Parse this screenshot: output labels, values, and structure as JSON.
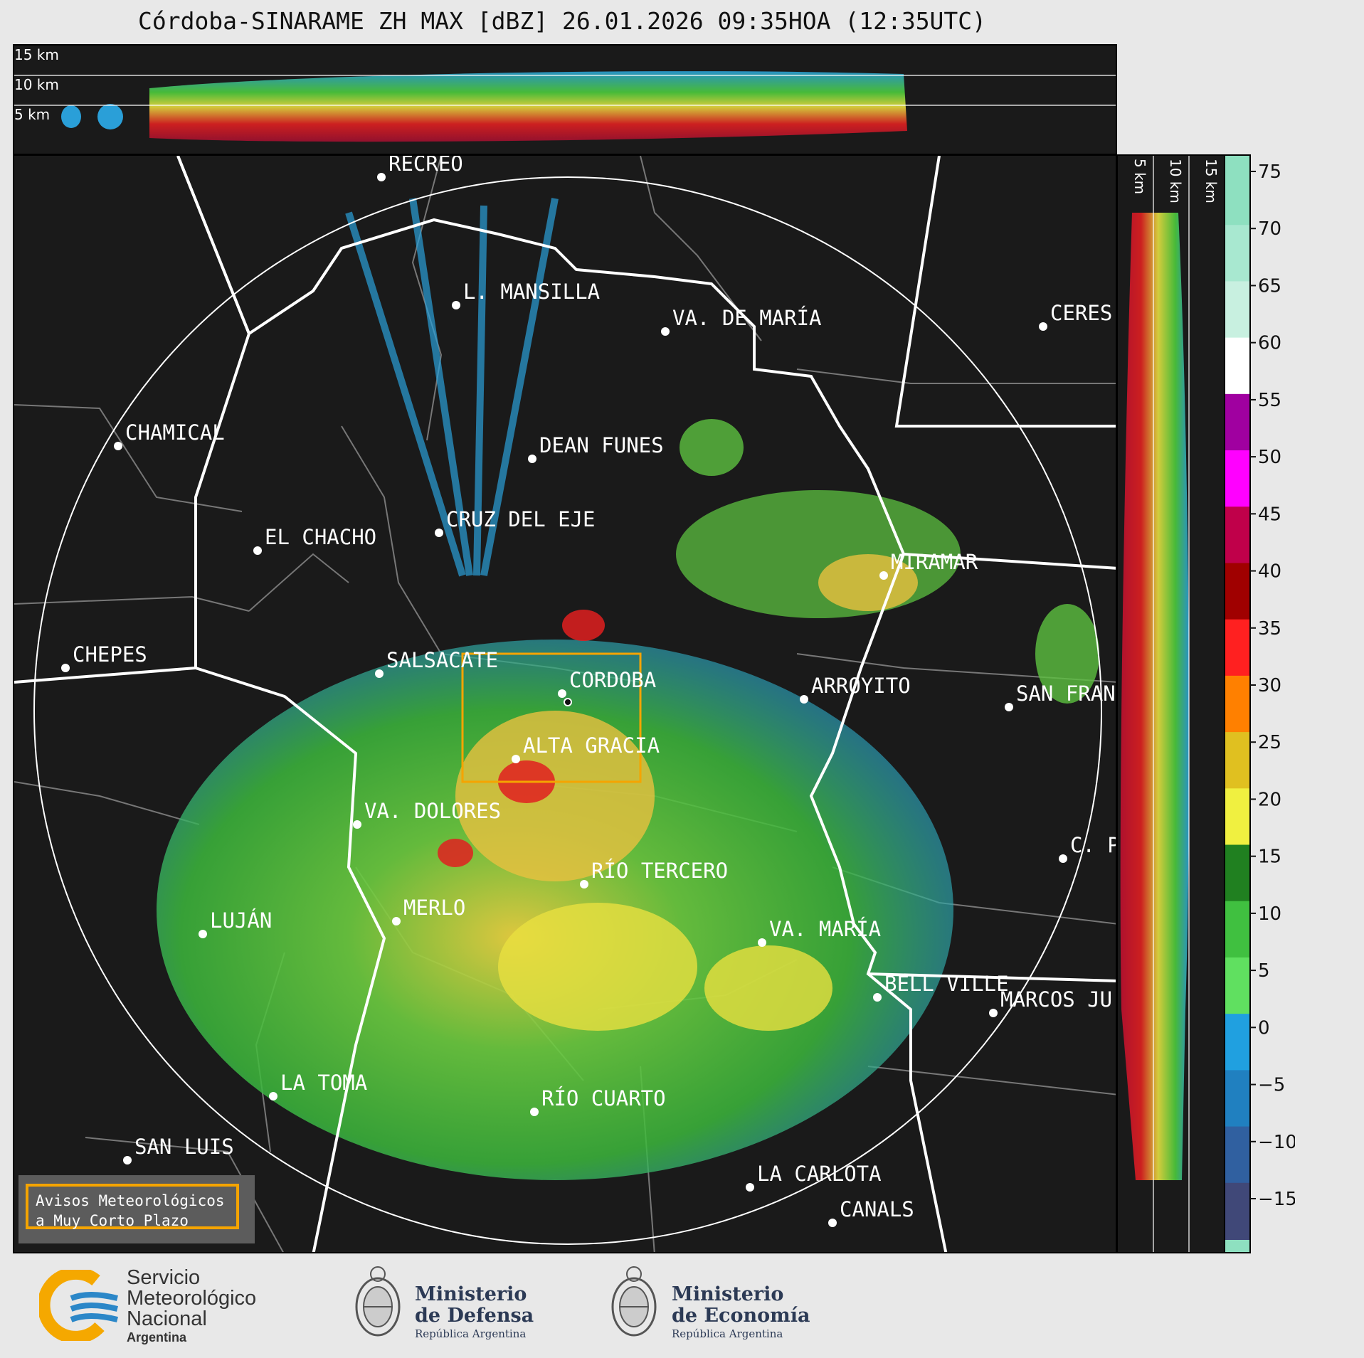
{
  "title": "Córdoba-SINARAME ZH MAX [dBZ] 26.01.2026 09:35HOA (12:35UTC)",
  "top_profile_labels": [
    "15 km",
    "10 km",
    "5 km"
  ],
  "side_profile_labels": [
    "5 km",
    "10 km",
    "15 km"
  ],
  "cities": [
    {
      "name": "RECREO"
    },
    {
      "name": "L. MANSILLA"
    },
    {
      "name": "VA. DE MARÍA"
    },
    {
      "name": "CERES"
    },
    {
      "name": "CHAMICAL"
    },
    {
      "name": "DEAN FUNES"
    },
    {
      "name": "CRUZ DEL EJE"
    },
    {
      "name": "EL CHACHO"
    },
    {
      "name": "MIRAMAR"
    },
    {
      "name": "CHEPES"
    },
    {
      "name": "SALSACATE"
    },
    {
      "name": "CORDOBA"
    },
    {
      "name": "ARROYITO"
    },
    {
      "name": "SAN FRAN"
    },
    {
      "name": "ALTA GRACIA"
    },
    {
      "name": "VA. DOLORES"
    },
    {
      "name": "C. P"
    },
    {
      "name": "RÍO TERCERO"
    },
    {
      "name": "MERLO"
    },
    {
      "name": "LUJÁN"
    },
    {
      "name": "VA. MARÍA"
    },
    {
      "name": "BELL VILLE"
    },
    {
      "name": "MARCOS JU"
    },
    {
      "name": "LA TOMA"
    },
    {
      "name": "RÍO CUARTO"
    },
    {
      "name": "SAN LUIS"
    },
    {
      "name": "LA CARLOTA"
    },
    {
      "name": "CANALS"
    }
  ],
  "colorbar": {
    "ticks": [
      "75",
      "70",
      "65",
      "60",
      "55",
      "50",
      "45",
      "40",
      "35",
      "30",
      "25",
      "20",
      "15",
      "10",
      "5",
      "0",
      "−5",
      "−10",
      "−15"
    ],
    "colors": [
      "#8ee0c0",
      "#a8e8d0",
      "#c8f0e0",
      "#ffffff",
      "#a000a0",
      "#ff00ff",
      "#c0004a",
      "#a00000",
      "#ff2020",
      "#ff8000",
      "#e0c020",
      "#f0f040",
      "#208020",
      "#40c040",
      "#60e060",
      "#20a0e0",
      "#2080c0",
      "#3060a0",
      "#404878"
    ]
  },
  "aviso": {
    "line1": "Avisos Meteorológicos",
    "line2": "a Muy Corto Plazo"
  },
  "footer": {
    "smn": {
      "line1": "Servicio",
      "line2": "Meteorológico",
      "line3": "Nacional",
      "line4": "Argentina"
    },
    "defensa": {
      "line1": "Ministerio",
      "line2": "de Defensa",
      "line3": "República Argentina"
    },
    "economia": {
      "line1": "Ministerio",
      "line2": "de Economía",
      "line3": "República Argentina"
    }
  }
}
